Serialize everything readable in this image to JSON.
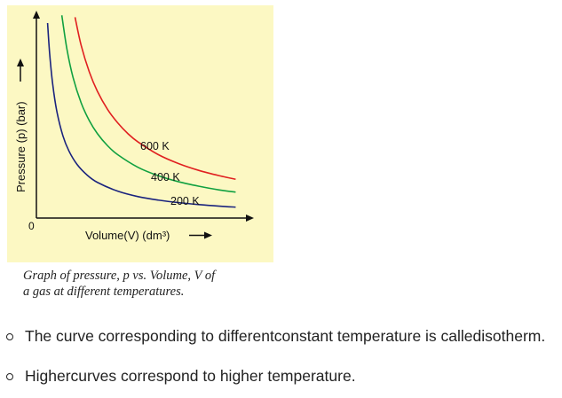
{
  "chart_data": {
    "type": "line",
    "title": "",
    "xlabel": "Volume(V) (dm³)",
    "ylabel": "Pressure (p) (bar)",
    "origin_label": "0",
    "xlim": [
      0,
      10
    ],
    "ylim": [
      0,
      10
    ],
    "grid": false,
    "x_tick_labels": [],
    "y_tick_labels": [],
    "series": [
      {
        "name": "600 K",
        "label": "600 K",
        "color": "#e02020",
        "x": [
          1.9,
          2.2,
          2.6,
          3.0,
          3.5,
          4.0,
          4.5,
          5.0,
          6.0,
          7.0,
          8.0,
          9.0,
          9.8
        ],
        "y": [
          10.3,
          8.86,
          7.5,
          6.5,
          5.57,
          4.88,
          4.33,
          3.9,
          3.25,
          2.79,
          2.44,
          2.17,
          1.99
        ]
      },
      {
        "name": "400 K",
        "label": "400 K",
        "color": "#10a040",
        "x": [
          1.25,
          1.5,
          1.8,
          2.2,
          2.6,
          3.0,
          3.5,
          4.0,
          5.0,
          6.0,
          7.0,
          8.0,
          9.0,
          9.8
        ],
        "y": [
          10.4,
          8.67,
          7.22,
          5.91,
          5.0,
          4.33,
          3.71,
          3.25,
          2.6,
          2.17,
          1.86,
          1.63,
          1.44,
          1.33
        ]
      },
      {
        "name": "200 K",
        "label": "200 K",
        "color": "#1a237e",
        "x": [
          0.55,
          0.65,
          0.8,
          1.0,
          1.3,
          1.6,
          2.0,
          2.5,
          3.0,
          4.0,
          5.0,
          6.0,
          7.0,
          8.0,
          9.0,
          9.8
        ],
        "y": [
          10.0,
          8.46,
          6.88,
          5.5,
          4.23,
          3.44,
          2.75,
          2.2,
          1.83,
          1.38,
          1.1,
          0.92,
          0.79,
          0.69,
          0.61,
          0.56
        ]
      }
    ]
  },
  "caption": {
    "line1": "Graph of pressure, p vs. Volume, V of",
    "line2": "a gas at different temperatures."
  },
  "bullets": [
    "The curve corresponding to differentconstant temperature is calledisotherm.",
    "Highercurves correspond to higher temperature."
  ],
  "colors": {
    "panel_background": "#fcf8c3",
    "axis": "#111111",
    "text": "#222222"
  }
}
